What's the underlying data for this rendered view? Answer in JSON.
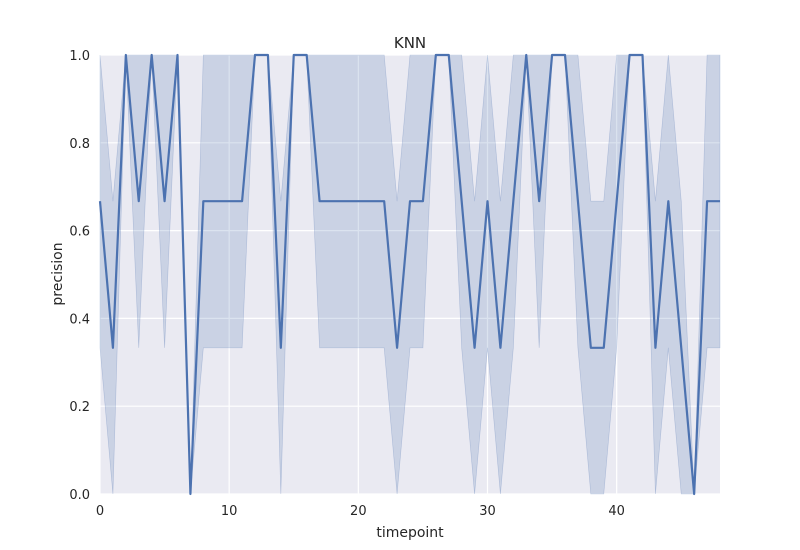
{
  "chart_data": {
    "type": "line",
    "title": "KNN",
    "xlabel": "timepoint",
    "ylabel": "precision",
    "xlim": [
      0,
      48
    ],
    "ylim": [
      0.0,
      1.0
    ],
    "xticks": [
      0,
      10,
      20,
      30,
      40
    ],
    "yticks": [
      0.0,
      0.2,
      0.4,
      0.6,
      0.8,
      1.0
    ],
    "xtick_labels": [
      "0",
      "10",
      "20",
      "30",
      "40"
    ],
    "ytick_labels": [
      "0.0",
      "0.2",
      "0.4",
      "0.6",
      "0.8",
      "1.0"
    ],
    "grid": true,
    "colors": {
      "line": "#4c72b0",
      "band": "#4c72b0",
      "background": "#eaeaf2",
      "grid": "#ffffff"
    },
    "series": [
      {
        "x": [
          0,
          1,
          2,
          3,
          4,
          5,
          6,
          7,
          8,
          9,
          10,
          11,
          12,
          13,
          14,
          15,
          16,
          17,
          18,
          19,
          20,
          21,
          22,
          23,
          24,
          25,
          26,
          27,
          28,
          29,
          30,
          31,
          32,
          33,
          34,
          35,
          36,
          37,
          38,
          39,
          40,
          41,
          42,
          43,
          44,
          45,
          46,
          47,
          48
        ],
        "y": [
          0.667,
          0.333,
          1.0,
          0.667,
          1.0,
          0.667,
          1.0,
          0.0,
          0.667,
          0.667,
          0.667,
          0.667,
          1.0,
          1.0,
          0.333,
          1.0,
          1.0,
          0.667,
          0.667,
          0.667,
          0.667,
          0.667,
          0.667,
          0.333,
          0.667,
          0.667,
          1.0,
          1.0,
          0.667,
          0.333,
          0.667,
          0.333,
          0.667,
          1.0,
          0.667,
          1.0,
          1.0,
          0.667,
          0.333,
          0.333,
          0.667,
          1.0,
          1.0,
          0.333,
          0.667,
          0.333,
          0.0,
          0.667,
          0.667
        ],
        "ci_low": [
          0.333,
          0.0,
          1.0,
          0.333,
          1.0,
          0.333,
          1.0,
          0.0,
          0.333,
          0.333,
          0.333,
          0.333,
          1.0,
          1.0,
          0.0,
          1.0,
          1.0,
          0.333,
          0.333,
          0.333,
          0.333,
          0.333,
          0.333,
          0.0,
          0.333,
          0.333,
          1.0,
          1.0,
          0.333,
          0.0,
          0.333,
          0.0,
          0.333,
          1.0,
          0.333,
          1.0,
          1.0,
          0.333,
          0.0,
          0.0,
          0.333,
          1.0,
          1.0,
          0.0,
          0.333,
          0.0,
          0.0,
          0.333,
          0.333
        ],
        "ci_high": [
          1.0,
          0.667,
          1.0,
          1.0,
          1.0,
          1.0,
          1.0,
          0.0,
          1.0,
          1.0,
          1.0,
          1.0,
          1.0,
          1.0,
          0.667,
          1.0,
          1.0,
          1.0,
          1.0,
          1.0,
          1.0,
          1.0,
          1.0,
          0.667,
          1.0,
          1.0,
          1.0,
          1.0,
          1.0,
          0.667,
          1.0,
          0.667,
          1.0,
          1.0,
          1.0,
          1.0,
          1.0,
          1.0,
          0.667,
          0.667,
          1.0,
          1.0,
          1.0,
          0.667,
          1.0,
          0.667,
          0.0,
          1.0,
          1.0
        ]
      }
    ]
  }
}
